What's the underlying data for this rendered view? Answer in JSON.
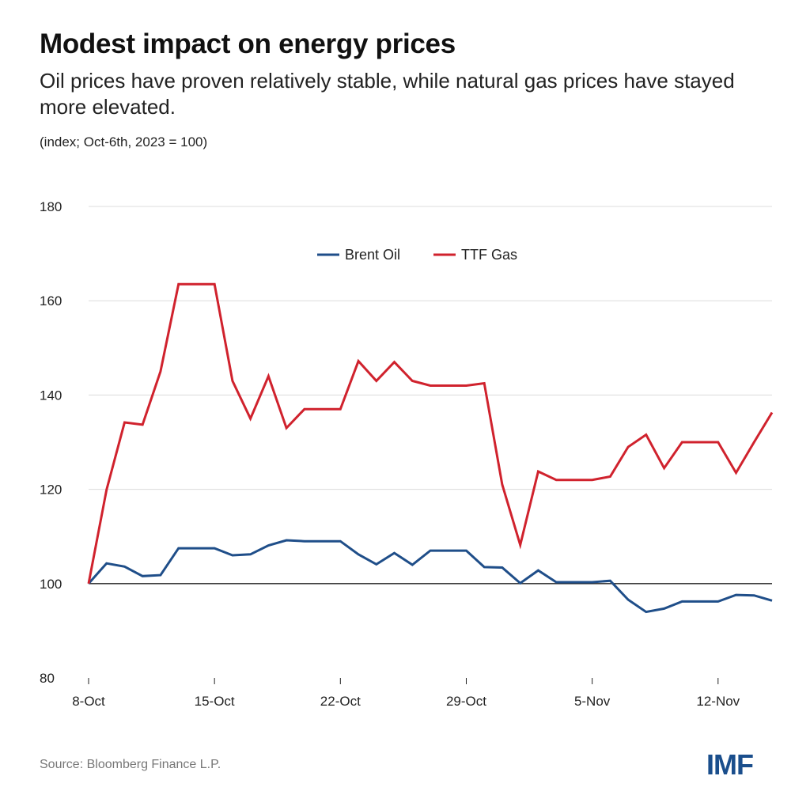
{
  "header": {
    "title": "Modest impact on energy prices",
    "subtitle": "Oil prices have proven relatively stable, while natural gas prices have stayed more elevated.",
    "unit": "(index; Oct-6th, 2023 = 100)"
  },
  "footer": {
    "source": "Source: Bloomberg Finance L.P.",
    "logo": "IMF"
  },
  "chart_data": {
    "type": "line",
    "title": "Modest impact on energy prices",
    "ylabel": "(index; Oct-6th, 2023 = 100)",
    "xlabel": "",
    "ylim": [
      80,
      180
    ],
    "yticks": [
      80,
      100,
      120,
      140,
      160,
      180
    ],
    "xticks": [
      "8-Oct",
      "15-Oct",
      "22-Oct",
      "29-Oct",
      "5-Nov",
      "12-Nov"
    ],
    "grid": true,
    "legend": "top-center",
    "reference_line": 100,
    "x": [
      "8-Oct",
      "9-Oct",
      "10-Oct",
      "11-Oct",
      "12-Oct",
      "13-Oct",
      "14-Oct",
      "15-Oct",
      "16-Oct",
      "17-Oct",
      "18-Oct",
      "19-Oct",
      "20-Oct",
      "21-Oct",
      "22-Oct",
      "23-Oct",
      "24-Oct",
      "25-Oct",
      "26-Oct",
      "27-Oct",
      "28-Oct",
      "29-Oct",
      "30-Oct",
      "31-Oct",
      "1-Nov",
      "2-Nov",
      "3-Nov",
      "4-Nov",
      "5-Nov",
      "6-Nov",
      "7-Nov",
      "8-Nov",
      "9-Nov",
      "10-Nov",
      "11-Nov",
      "12-Nov",
      "13-Nov",
      "14-Nov",
      "15-Nov"
    ],
    "series": [
      {
        "name": "Brent Oil",
        "color": "#1f4e89",
        "values": [
          100,
          104.3,
          103.6,
          101.6,
          101.8,
          107.5,
          107.5,
          107.5,
          106,
          106.2,
          108.1,
          109.2,
          109,
          109,
          109,
          106.2,
          104.1,
          106.5,
          104,
          107,
          107,
          107,
          103.5,
          103.4,
          100.1,
          102.8,
          100.3,
          100.3,
          100.3,
          100.6,
          96.6,
          94,
          94.7,
          96.2,
          96.2,
          96.2,
          97.6,
          97.5,
          96.4
        ]
      },
      {
        "name": "TTF Gas",
        "color": "#d0222d",
        "values": [
          100,
          119.9,
          134.2,
          133.7,
          145,
          163.5,
          163.5,
          163.5,
          143,
          135,
          144,
          133,
          137,
          137,
          137,
          147.2,
          143,
          147,
          143,
          142,
          142,
          142,
          142.5,
          121,
          108.2,
          123.8,
          122,
          122,
          122,
          122.7,
          129,
          131.6,
          124.5,
          130,
          130,
          130,
          123.5,
          130,
          136.3
        ]
      }
    ]
  }
}
